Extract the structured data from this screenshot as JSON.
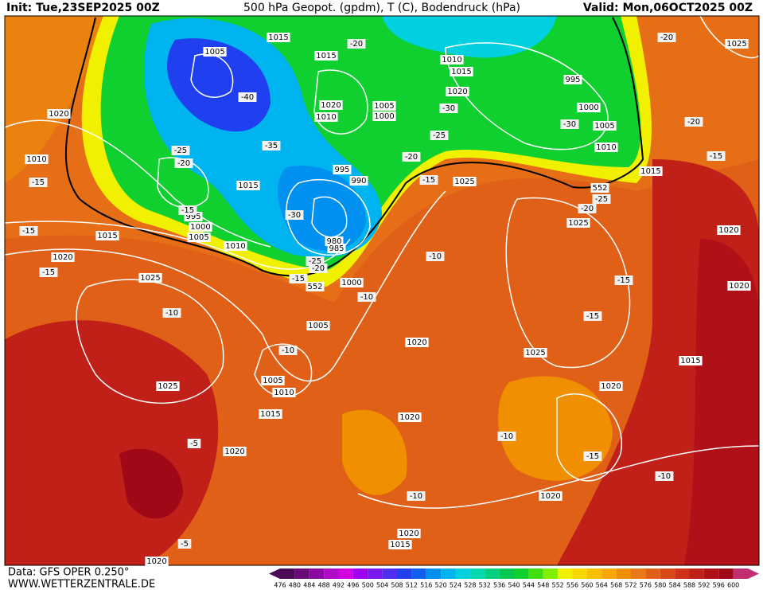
{
  "header": {
    "init": "Init: Tue,23SEP2025 00Z",
    "title": "500 hPa Geopot. (gpdm), T (C), Bodendruck (hPa)",
    "valid": "Valid: Mon,06OCT2025 00Z"
  },
  "footer": {
    "source": "Data: GFS OPER 0.250°",
    "url": "WWW.WETTERZENTRALE.DE"
  },
  "scale": {
    "values": [
      476,
      480,
      484,
      488,
      492,
      496,
      500,
      504,
      508,
      512,
      516,
      520,
      524,
      528,
      532,
      536,
      540,
      544,
      548,
      552,
      556,
      560,
      564,
      568,
      572,
      576,
      580,
      584,
      588,
      592,
      596,
      600
    ],
    "colors": [
      "#4b0a55",
      "#6a0a7a",
      "#8a0aa0",
      "#b00ac8",
      "#d000e0",
      "#a000f0",
      "#7a1af0",
      "#5030f0",
      "#2040f0",
      "#1060f0",
      "#0090f0",
      "#00b4f0",
      "#00d0e0",
      "#00d8b0",
      "#00d080",
      "#00c850",
      "#10d030",
      "#40e010",
      "#80f000",
      "#f0f000",
      "#f8d800",
      "#f8c000",
      "#f8a800",
      "#f09000",
      "#e87818",
      "#e06018",
      "#d84818",
      "#d03018",
      "#c02018",
      "#b01018",
      "#a00818",
      "#c03070"
    ]
  },
  "isobar_labels": [
    1005,
    1015,
    1015,
    1010,
    1015,
    1020,
    995,
    1000,
    1005,
    1010,
    1015,
    1025,
    1020,
    1010,
    1020,
    1010,
    1005,
    1000,
    995,
    990,
    1015,
    1025,
    995,
    1000,
    1005,
    1015,
    1010,
    1020,
    1025,
    1020,
    1020,
    1025,
    1000,
    1005,
    1020,
    1025,
    1015,
    1020,
    1025,
    1005,
    1010,
    1015,
    1020,
    1020,
    1020,
    1020,
    1015,
    1020,
    980,
    985,
    552,
    552
  ],
  "temperature_labels": [
    -20,
    -20,
    -40,
    -30,
    -30,
    -20,
    -35,
    -25,
    -20,
    -25,
    -20,
    -15,
    -15,
    -15,
    -25,
    -20,
    -30,
    -15,
    -25,
    -20,
    -15,
    -10,
    -10,
    -15,
    -15,
    -10,
    -15,
    -10,
    -10,
    -15,
    -10,
    -5,
    -10,
    -5,
    -15
  ]
}
